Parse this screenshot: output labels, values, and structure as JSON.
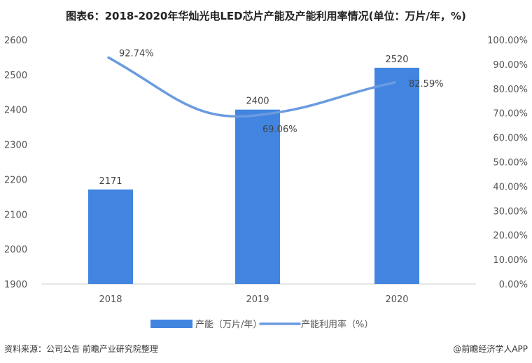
{
  "chart_data": {
    "type": "bar+line",
    "title": "图表6：2018-2020年华灿光电LED芯片产能及产能利用率情况(单位：万片/年，%)",
    "categories": [
      "2018",
      "2019",
      "2020"
    ],
    "series": [
      {
        "name": "产能（万片/年）",
        "type": "bar",
        "axis": "left",
        "values": [
          2171,
          2400,
          2520
        ],
        "labels": [
          "2171",
          "2400",
          "2520"
        ],
        "color": "#4285E0"
      },
      {
        "name": "产能利用率（%）",
        "type": "line",
        "axis": "right",
        "values": [
          92.74,
          69.06,
          82.59
        ],
        "labels": [
          "92.74%",
          "69.06%",
          "82.59%"
        ],
        "color": "#6A9BE0"
      }
    ],
    "left_axis": {
      "range": [
        1900,
        2600
      ],
      "ticks": [
        "1900",
        "2000",
        "2100",
        "2200",
        "2300",
        "2400",
        "2500",
        "2600"
      ]
    },
    "right_axis": {
      "range": [
        0,
        100
      ],
      "ticks": [
        "0.00%",
        "10.00%",
        "20.00%",
        "30.00%",
        "40.00%",
        "50.00%",
        "60.00%",
        "70.00%",
        "80.00%",
        "90.00%",
        "100.00%"
      ]
    },
    "grid": false,
    "legend": "bottom"
  },
  "footer": {
    "source": "资料来源：公司公告 前瞻产业研究院整理",
    "credit": "@前瞻经济学人APP"
  }
}
